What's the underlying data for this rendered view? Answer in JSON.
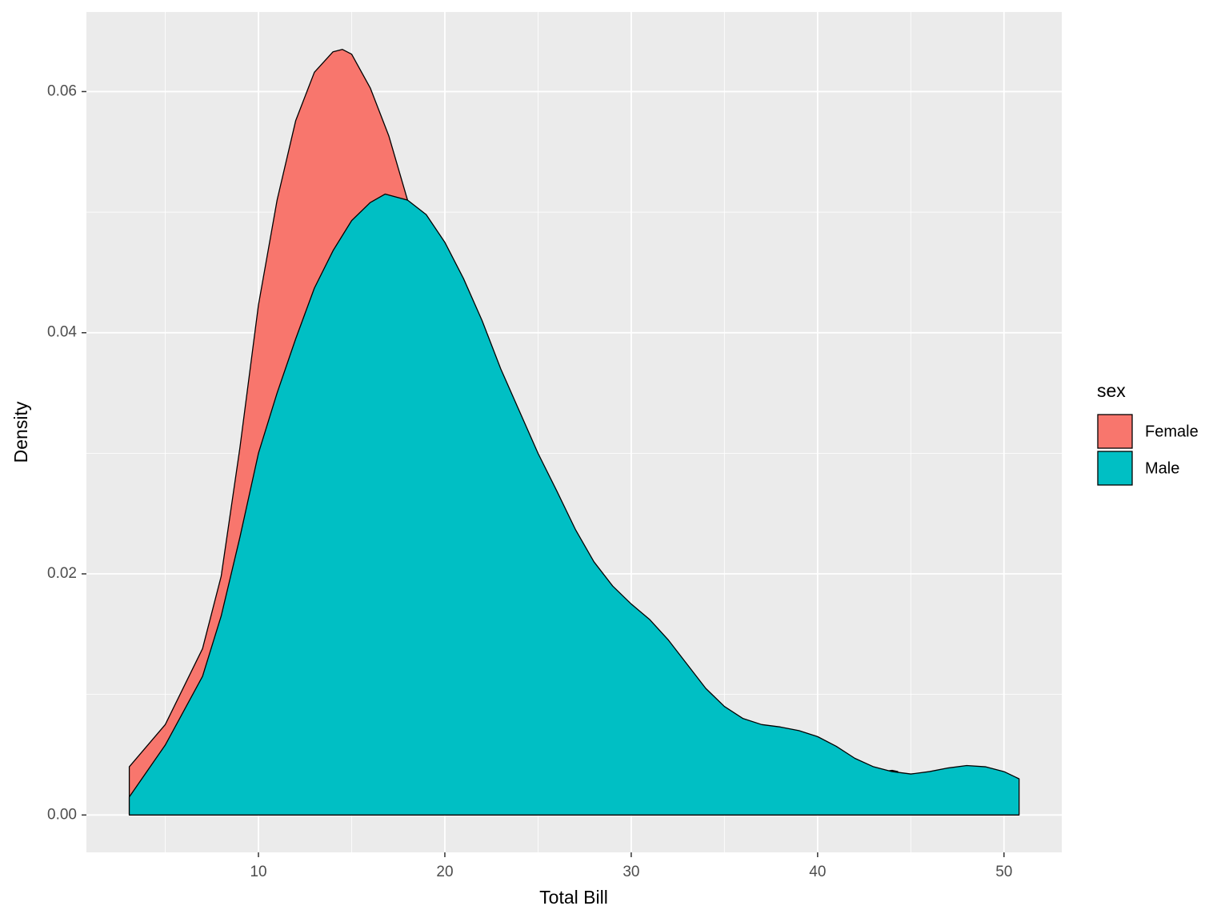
{
  "chart_data": {
    "type": "density",
    "x_label": "Total Bill",
    "y_label": "Density",
    "legend_title": "sex",
    "xlim": [
      0.77,
      53.1
    ],
    "ylim": [
      -0.0031,
      0.0666
    ],
    "xticks": [
      10,
      20,
      30,
      40,
      50
    ],
    "minor_xticks": [
      5,
      15,
      25,
      35,
      45
    ],
    "yticks": [
      {
        "value": 0,
        "label": "0.00"
      },
      {
        "value": 0.02,
        "label": "0.02"
      },
      {
        "value": 0.04,
        "label": "0.04"
      },
      {
        "value": 0.06,
        "label": "0.06"
      }
    ],
    "minor_yticks": [
      0.01,
      0.03,
      0.05
    ],
    "grid": true,
    "legend": "right",
    "series": [
      {
        "name": "Female",
        "color": "#F8766D",
        "x": [
          3.07,
          5,
          7,
          8,
          9,
          10,
          11,
          12,
          13,
          14,
          14.5,
          15,
          16,
          17,
          18,
          20,
          22,
          25,
          28,
          30,
          33,
          36,
          40,
          43,
          44,
          44.3
        ],
        "values": [
          0.004,
          0.0075,
          0.0138,
          0.0198,
          0.0304,
          0.0423,
          0.051,
          0.0576,
          0.0616,
          0.0633,
          0.0635,
          0.0631,
          0.0603,
          0.0563,
          0.051,
          0.041,
          0.031,
          0.02,
          0.015,
          0.013,
          0.01,
          0.006,
          0.004,
          0.0035,
          0.0037,
          0.0036
        ]
      },
      {
        "name": "Male",
        "color": "#00BFC4",
        "x": [
          3.07,
          5,
          7,
          8,
          9,
          10,
          11,
          12,
          13,
          14,
          15,
          16,
          16.8,
          18,
          19,
          20,
          21,
          22,
          23,
          24,
          25,
          26,
          27,
          28,
          29,
          30,
          31,
          32,
          33,
          34,
          35,
          36,
          37,
          38,
          39,
          40,
          41,
          42,
          43,
          44,
          45,
          46,
          47,
          48,
          49,
          50,
          50.81
        ],
        "values": [
          0.0015,
          0.0058,
          0.0115,
          0.0165,
          0.023,
          0.03,
          0.035,
          0.0395,
          0.0437,
          0.0468,
          0.0493,
          0.0508,
          0.0515,
          0.051,
          0.0498,
          0.0475,
          0.0445,
          0.041,
          0.037,
          0.0335,
          0.03,
          0.0269,
          0.0237,
          0.021,
          0.019,
          0.0175,
          0.0162,
          0.0145,
          0.0125,
          0.0105,
          0.009,
          0.008,
          0.0075,
          0.0073,
          0.007,
          0.0065,
          0.0057,
          0.0047,
          0.004,
          0.0036,
          0.0034,
          0.0036,
          0.0039,
          0.0041,
          0.004,
          0.0036,
          0.003
        ]
      }
    ]
  }
}
